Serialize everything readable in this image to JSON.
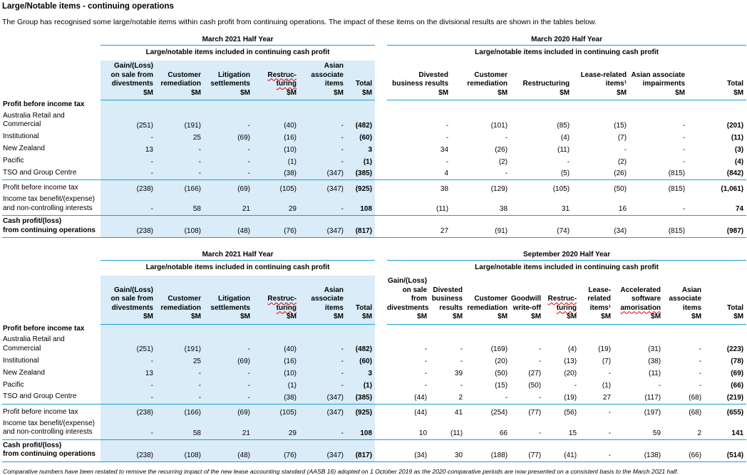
{
  "title": "Large/Notable items - continuing operations",
  "intro": "The Group has recognised some large/notable items within cash profit from continuing operations. The impact of these items on the divisional results are shown in the tables below.",
  "footnote": "Comparative numbers have been restated to remove the recurring impact of the new lease accounting standard (AASB 16) adopted on 1 October 2019 as the 2020 comparative periods are now presented on a consistent basis to the March 2021 half.",
  "group_subtitle": "Large/notable items included in continuing cash profit",
  "colors": {
    "accent_line": "#1b9fd8",
    "row_shading": "#d9ecf7",
    "misspell_underline": "#e00000"
  },
  "row_labels": {
    "section": "Profit before income tax",
    "divisions": [
      "Australia Retail and Commercial",
      "Institutional",
      "New Zealand",
      "Pacific",
      "TSO and Group Centre"
    ],
    "subtotal": "Profit before income tax",
    "tax": "Income tax benefit/(expense)\nand non-controlling interests",
    "total": "Cash profit/(loss)\nfrom continuing operations"
  },
  "tables": [
    {
      "left": {
        "period": "March 2021 Half Year",
        "columns": [
          {
            "label": "Gain/(Loss)\non sale from\ndivestments\n$M"
          },
          {
            "label": "Customer\nremediation\n$M"
          },
          {
            "label": "Litigation\nsettlements\n$M"
          },
          {
            "label": "Restruc-\nturing\n$M",
            "wavy": [
              "Restruc-",
              "turing"
            ]
          },
          {
            "label": "Asian\nassociate\nitems\n$M"
          },
          {
            "label": "Total\n$M"
          }
        ],
        "division_rows": [
          [
            "(251)",
            "(191)",
            "-",
            "(40)",
            "-",
            "(482)"
          ],
          [
            "-",
            "25",
            "(69)",
            "(16)",
            "-",
            "(60)"
          ],
          [
            "13",
            "-",
            "-",
            "(10)",
            "-",
            "3"
          ],
          [
            "-",
            "-",
            "-",
            "(1)",
            "-",
            "(1)"
          ],
          [
            "-",
            "-",
            "-",
            "(38)",
            "(347)",
            "(385)"
          ]
        ],
        "subtotal_row": [
          "(238)",
          "(166)",
          "(69)",
          "(105)",
          "(347)",
          "(925)"
        ],
        "tax_row": [
          "-",
          "58",
          "21",
          "29",
          "-",
          "108"
        ],
        "total_row": [
          "(238)",
          "(108)",
          "(48)",
          "(76)",
          "(347)",
          "(817)"
        ]
      },
      "right": {
        "period": "March 2020 Half Year",
        "columns": [
          {
            "label": "Divested\nbusiness results\n$M"
          },
          {
            "label": "Customer\nremediation\n$M"
          },
          {
            "label": "Restructuring\n$M"
          },
          {
            "label": "Lease-related\nitems¹\n$M"
          },
          {
            "label": "Asian associate\nimpairments\n$M"
          },
          {
            "label": "Total\n$M"
          }
        ],
        "division_rows": [
          [
            "-",
            "(101)",
            "(85)",
            "(15)",
            "-",
            "(201)"
          ],
          [
            "-",
            "-",
            "(4)",
            "(7)",
            "-",
            "(11)"
          ],
          [
            "34",
            "(26)",
            "(11)",
            "-",
            "-",
            "(3)"
          ],
          [
            "-",
            "(2)",
            "-",
            "(2)",
            "-",
            "(4)"
          ],
          [
            "4",
            "-",
            "(5)",
            "(26)",
            "(815)",
            "(842)"
          ]
        ],
        "subtotal_row": [
          "38",
          "(129)",
          "(105)",
          "(50)",
          "(815)",
          "(1,061)"
        ],
        "tax_row": [
          "(11)",
          "38",
          "31",
          "16",
          "-",
          "74"
        ],
        "total_row": [
          "27",
          "(91)",
          "(74)",
          "(34)",
          "(815)",
          "(987)"
        ]
      }
    },
    {
      "left": {
        "period": "March 2021 Half Year",
        "columns": [
          {
            "label": "Gain/(Loss)\non sale from\ndivestments\n$M"
          },
          {
            "label": "Customer\nremediation\n$M"
          },
          {
            "label": "Litigation\nsettlements\n$M"
          },
          {
            "label": "Restruc-\nturing\n$M",
            "wavy": [
              "Restruc-",
              "turing"
            ]
          },
          {
            "label": "Asian\nassociate\nitems\n$M"
          },
          {
            "label": "Total\n$M"
          }
        ],
        "division_rows": [
          [
            "(251)",
            "(191)",
            "-",
            "(40)",
            "-",
            "(482)"
          ],
          [
            "-",
            "25",
            "(69)",
            "(16)",
            "-",
            "(60)"
          ],
          [
            "13",
            "-",
            "-",
            "(10)",
            "-",
            "3"
          ],
          [
            "-",
            "-",
            "-",
            "(1)",
            "-",
            "(1)"
          ],
          [
            "-",
            "-",
            "-",
            "(38)",
            "(347)",
            "(385)"
          ]
        ],
        "subtotal_row": [
          "(238)",
          "(166)",
          "(69)",
          "(105)",
          "(347)",
          "(925)"
        ],
        "tax_row": [
          "-",
          "58",
          "21",
          "29",
          "-",
          "108"
        ],
        "total_row": [
          "(238)",
          "(108)",
          "(48)",
          "(76)",
          "(347)",
          "(817)"
        ]
      },
      "right": {
        "period": "September 2020 Half Year",
        "columns": [
          {
            "label": "Gain/(Loss)\non sale from\ndivestments\n$M"
          },
          {
            "label": "Divested\nbusiness\nresults\n$M"
          },
          {
            "label": "Customer\nremediation\n$M"
          },
          {
            "label": "Goodwill\nwrite-off\n$M"
          },
          {
            "label": "Restruc-\nturing\n$M",
            "wavy": [
              "Restruc-",
              "turing"
            ]
          },
          {
            "label": "Lease-\nrelated\nitems¹\n$M"
          },
          {
            "label": "Accelerated\nsoftware\namorisation\n$M",
            "wavy": [
              "amorisation"
            ]
          },
          {
            "label": "Asian\nassociate\nitems\n$M"
          },
          {
            "label": "Total\n$M"
          }
        ],
        "division_rows": [
          [
            "-",
            "-",
            "(169)",
            "-",
            "(4)",
            "(19)",
            "(31)",
            "-",
            "(223)"
          ],
          [
            "-",
            "-",
            "(20)",
            "-",
            "(13)",
            "(7)",
            "(38)",
            "-",
            "(78)"
          ],
          [
            "-",
            "39",
            "(50)",
            "(27)",
            "(20)",
            "-",
            "(11)",
            "-",
            "(69)"
          ],
          [
            "-",
            "-",
            "(15)",
            "(50)",
            "-",
            "(1)",
            "-",
            "-",
            "(66)"
          ],
          [
            "(44)",
            "2",
            "-",
            "-",
            "(19)",
            "27",
            "(117)",
            "(68)",
            "(219)"
          ]
        ],
        "subtotal_row": [
          "(44)",
          "41",
          "(254)",
          "(77)",
          "(56)",
          "-",
          "(197)",
          "(68)",
          "(655)"
        ],
        "tax_row": [
          "10",
          "(11)",
          "66",
          "-",
          "15",
          "-",
          "59",
          "2",
          "141"
        ],
        "total_row": [
          "(34)",
          "30",
          "(188)",
          "(77)",
          "(41)",
          "-",
          "(138)",
          "(66)",
          "(514)"
        ]
      }
    }
  ]
}
